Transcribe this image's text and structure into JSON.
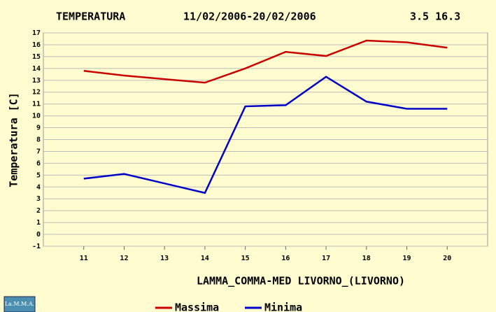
{
  "chart_data": {
    "type": "line",
    "title": "TEMPERATURA",
    "subtitle": "11/02/2006-20/02/2006",
    "annotations": [
      "3.5 16.3"
    ],
    "y_label": "Temperatura [C]",
    "x_label": "LAMMA_COMMA-MED LIVORNO_(LIVORNO)",
    "logo": "La.M.M.A.",
    "categories": [
      "11",
      "12",
      "13",
      "14",
      "15",
      "16",
      "17",
      "18",
      "19",
      "20"
    ],
    "series": [
      {
        "name": "Massima",
        "color": "#c80000",
        "values": [
          13.8,
          13.4,
          13.1,
          12.8,
          14.0,
          15.4,
          15.05,
          16.35,
          16.2,
          15.75
        ]
      },
      {
        "name": "Minima",
        "color": "#0000c8",
        "values": [
          4.7,
          5.1,
          4.3,
          3.5,
          10.8,
          10.9,
          13.3,
          11.2,
          10.6,
          10.6
        ]
      }
    ],
    "ylim": [
      -1,
      17
    ],
    "yticks": [
      -1,
      0,
      1,
      2,
      3,
      4,
      5,
      6,
      7,
      8,
      9,
      10,
      11,
      12,
      13,
      14,
      15,
      16,
      17
    ],
    "grid": true
  }
}
